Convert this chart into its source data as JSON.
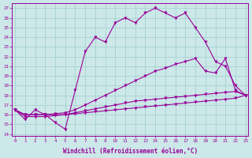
{
  "xlabel": "Windchill (Refroidissement éolien,°C)",
  "bg_color": "#cce8e8",
  "grid_color": "#aad4d4",
  "line_color": "#990099",
  "x_ticks": [
    0,
    1,
    2,
    3,
    4,
    5,
    6,
    7,
    8,
    9,
    10,
    11,
    12,
    13,
    14,
    15,
    16,
    17,
    18,
    19,
    20,
    21,
    22,
    23
  ],
  "y_ticks": [
    14,
    15,
    16,
    17,
    18,
    19,
    20,
    21,
    22,
    23,
    24,
    25,
    26,
    27
  ],
  "ylim": [
    13.8,
    27.5
  ],
  "xlim": [
    -0.3,
    23.3
  ],
  "series1": [
    16.5,
    15.5,
    16.5,
    16.0,
    15.2,
    14.5,
    18.5,
    22.5,
    24.0,
    23.5,
    25.5,
    26.0,
    25.5,
    26.5,
    27.0,
    26.5,
    26.0,
    26.5,
    25.0,
    23.5,
    21.5,
    21.0,
    19.0,
    18.0
  ],
  "series2": [
    16.5,
    16.0,
    16.0,
    16.0,
    16.1,
    16.2,
    16.5,
    17.0,
    17.5,
    18.0,
    18.5,
    19.0,
    19.5,
    20.0,
    20.5,
    20.8,
    21.2,
    21.5,
    21.8,
    20.5,
    20.3,
    21.8,
    18.5,
    18.0
  ],
  "series3": [
    16.5,
    16.0,
    16.0,
    16.0,
    16.0,
    16.0,
    16.2,
    16.4,
    16.6,
    16.8,
    17.0,
    17.2,
    17.4,
    17.5,
    17.6,
    17.7,
    17.8,
    17.9,
    18.0,
    18.1,
    18.2,
    18.3,
    18.4,
    18.0
  ],
  "series4": [
    16.5,
    15.8,
    15.8,
    15.8,
    15.9,
    16.0,
    16.1,
    16.2,
    16.3,
    16.4,
    16.5,
    16.6,
    16.7,
    16.8,
    16.9,
    17.0,
    17.1,
    17.2,
    17.3,
    17.4,
    17.5,
    17.6,
    17.7,
    18.0
  ]
}
